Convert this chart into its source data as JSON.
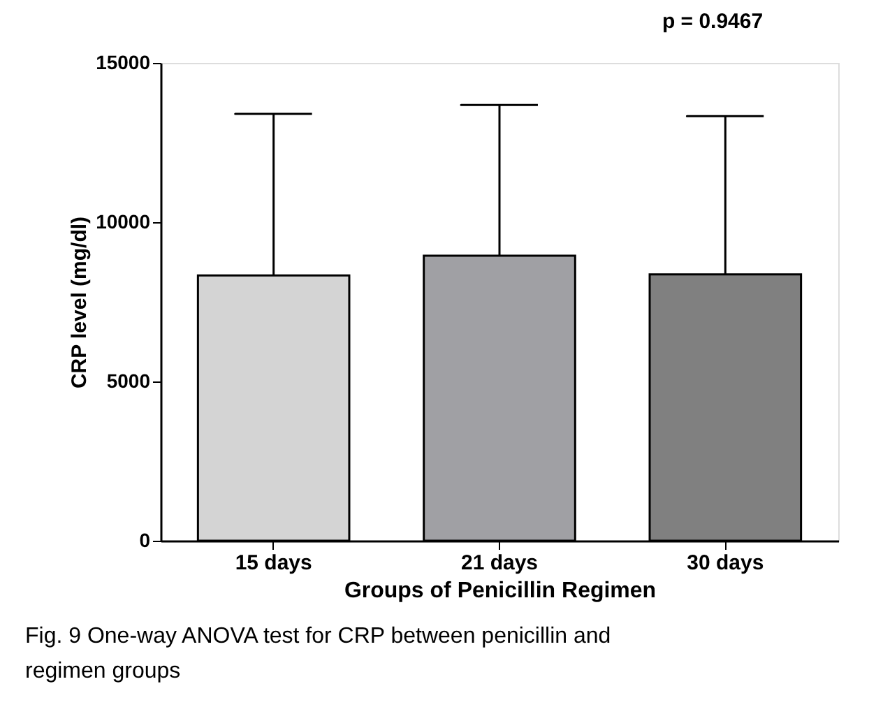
{
  "chart_data": {
    "type": "bar",
    "xlabel": "Groups of Penicillin Regimen",
    "ylabel": "CRP level (mg/dl)",
    "categories": [
      "15 days",
      "21 days",
      "30 days"
    ],
    "values": [
      8330,
      8950,
      8360
    ],
    "colors": [
      "#d4d4d4",
      "#a0a0a4",
      "#808080"
    ],
    "errors": [
      [
        8330,
        13400
      ],
      [
        8950,
        13680
      ],
      [
        8360,
        13330
      ]
    ],
    "ylim": [
      0,
      15000
    ],
    "yticks": [
      0,
      5000,
      10000,
      15000
    ],
    "grid": false,
    "annotations": [
      {
        "text": "p = 0.9467"
      },
      {
        "text": "Fig. 9 One-way ANOVA test for CRP between penicillin and regimen groups"
      }
    ]
  }
}
